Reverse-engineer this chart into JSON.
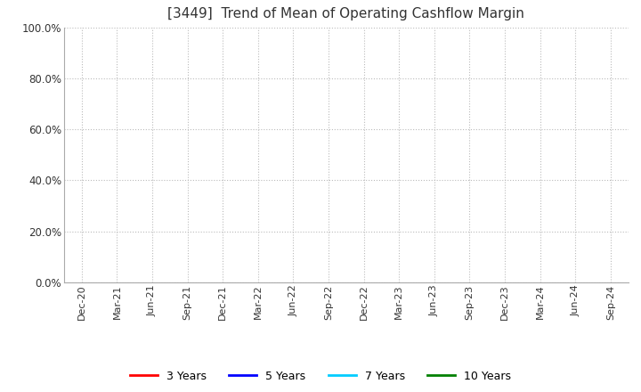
{
  "title": "[3449]  Trend of Mean of Operating Cashflow Margin",
  "title_fontsize": 11,
  "ylim": [
    0.0,
    1.0
  ],
  "yticks": [
    0.0,
    0.2,
    0.4,
    0.6,
    0.8,
    1.0
  ],
  "x_labels": [
    "Dec-20",
    "Mar-21",
    "Jun-21",
    "Sep-21",
    "Dec-21",
    "Mar-22",
    "Jun-22",
    "Sep-22",
    "Dec-22",
    "Mar-23",
    "Jun-23",
    "Sep-23",
    "Dec-23",
    "Mar-24",
    "Jun-24",
    "Sep-24"
  ],
  "legend_entries": [
    {
      "label": "3 Years",
      "color": "#ff0000",
      "linestyle": "-"
    },
    {
      "label": "5 Years",
      "color": "#0000ff",
      "linestyle": "-"
    },
    {
      "label": "7 Years",
      "color": "#00ccff",
      "linestyle": "-"
    },
    {
      "label": "10 Years",
      "color": "#008000",
      "linestyle": "-"
    }
  ],
  "background_color": "#ffffff",
  "plot_bg_color": "#ffffff",
  "grid_color": "#bbbbbb",
  "grid_linestyle": ":",
  "tick_label_color": "#333333",
  "title_color": "#333333",
  "tick_fontsize": 8,
  "ytick_fontsize": 8.5
}
